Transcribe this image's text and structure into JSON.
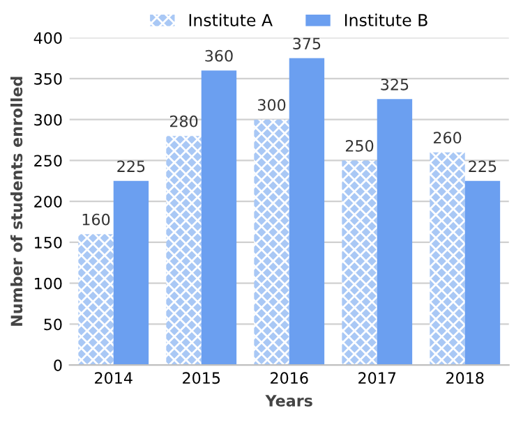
{
  "chart_data": {
    "type": "bar",
    "xlabel": "Years",
    "ylabel": "Number of students enrolled",
    "categories": [
      "2014",
      "2015",
      "2016",
      "2017",
      "2018"
    ],
    "series": [
      {
        "name": "Institute A",
        "color": "#a9c8f5",
        "values": [
          160,
          280,
          300,
          250,
          260
        ]
      },
      {
        "name": "Institute B",
        "color": "#6b9ff0",
        "values": [
          225,
          360,
          375,
          325,
          225
        ]
      }
    ],
    "ylim": [
      0,
      400
    ],
    "yticks": [
      0,
      50,
      100,
      150,
      200,
      250,
      300,
      350,
      400
    ],
    "grid": "y",
    "legend": "top",
    "data_labels": true
  }
}
